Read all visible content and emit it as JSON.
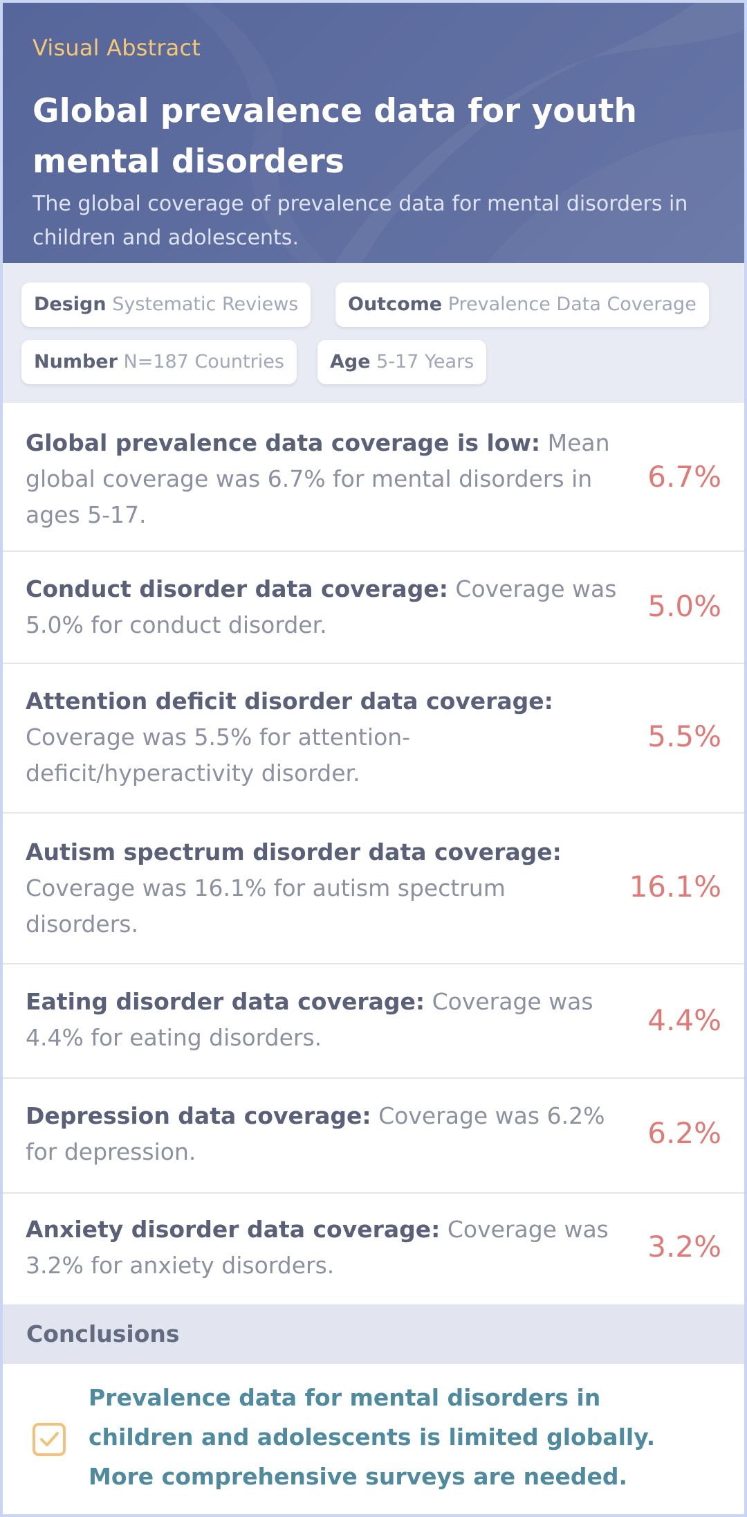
{
  "header": {
    "eyebrow": "Visual Abstract",
    "title": "Global prevalence data for youth mental disorders",
    "subtitle": "The global coverage of prevalence data for mental disorders in children and adolescents."
  },
  "tags": [
    {
      "key": "Design",
      "value": "Systematic Reviews"
    },
    {
      "key": "Outcome",
      "value": "Prevalence Data Coverage"
    },
    {
      "key": "Number",
      "value": "N=187 Countries"
    },
    {
      "key": "Age",
      "value": "5-17 Years"
    }
  ],
  "findings": [
    {
      "heading": "Global prevalence data coverage is low:",
      "body": "Mean global coverage was 6.7% for mental disorders in ages 5-17.",
      "value": "6.7%"
    },
    {
      "heading": "Conduct disorder data coverage:",
      "body": "Coverage was 5.0% for conduct disorder.",
      "value": "5.0%"
    },
    {
      "heading": "Attention deficit disorder data coverage:",
      "body": "Coverage was 5.5% for attention-deficit/hyperactivity disorder.",
      "value": "5.5%"
    },
    {
      "heading": "Autism spectrum disorder data coverage:",
      "body": "Coverage was 16.1% for autism spectrum disorders.",
      "value": "16.1%"
    },
    {
      "heading": "Eating disorder data coverage:",
      "body": "Coverage was 4.4% for eating disorders.",
      "value": "4.4%"
    },
    {
      "heading": "Depression data coverage:",
      "body": "Coverage was 6.2% for depression.",
      "value": "6.2%"
    },
    {
      "heading": "Anxiety disorder data coverage:",
      "body": "Coverage was 3.2% for anxiety disorders.",
      "value": "3.2%"
    }
  ],
  "conclusions": {
    "heading": "Conclusions",
    "text": "Prevalence data for mental disorders in children and adolescents is limited globally. More comprehensive surveys are needed.",
    "icon": "checkbox-check-icon"
  },
  "colors": {
    "header_bg": "#5e6d9f",
    "eyebrow": "#f5c873",
    "value_red": "#e07a76",
    "conclusion_teal": "#4f8a9e",
    "check_orange": "#f2c27a"
  }
}
